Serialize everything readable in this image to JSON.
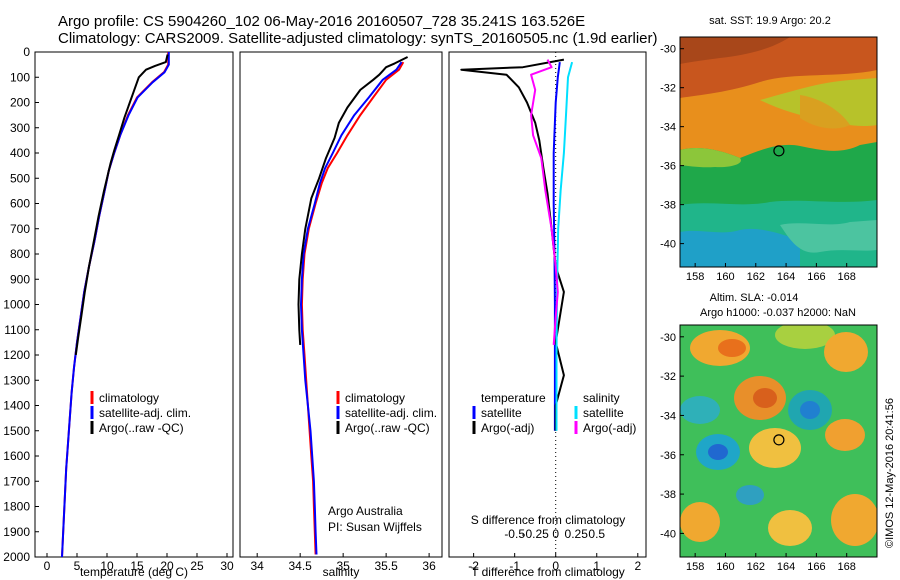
{
  "header": {
    "line1": "Argo profile: CS 5904260_102 06-May-2016 20160507_728 35.241S 163.526E",
    "line2": "Climatology: CARS2009. Satellite-adjusted climatology: synTS_20160505.nc (1.9d earlier)"
  },
  "credit": "©IMOS 12-May-2016 20:41:56",
  "colors": {
    "climatology": "#ff0000",
    "satellite": "#0000ff",
    "argo": "#000000",
    "salinity_satellite": "#00e0ff",
    "salinity_argo": "#ff00ff"
  },
  "chart_data": [
    {
      "id": "temperature",
      "type": "line",
      "xlabel": "temperature (deg C)",
      "ylabel": "",
      "xlim": [
        -2,
        31
      ],
      "ylim": [
        2000,
        0
      ],
      "xticks": [
        0,
        5,
        10,
        15,
        20,
        25,
        30
      ],
      "yticks": [
        0,
        100,
        200,
        300,
        400,
        500,
        600,
        700,
        800,
        900,
        1000,
        1100,
        1200,
        1300,
        1400,
        1500,
        1600,
        1700,
        1800,
        1900,
        2000
      ],
      "legend": [
        "climatology",
        "satellite-adj. clim.",
        "Argo(..raw -QC)"
      ],
      "series": [
        {
          "name": "climatology",
          "color": "#ff0000",
          "points": [
            [
              20.2,
              0
            ],
            [
              20.2,
              50
            ],
            [
              19.5,
              80
            ],
            [
              17.5,
              120
            ],
            [
              15,
              180
            ],
            [
              13.5,
              250
            ],
            [
              12.2,
              330
            ],
            [
              11.2,
              400
            ],
            [
              10.3,
              470
            ],
            [
              9.6,
              550
            ],
            [
              8.7,
              650
            ],
            [
              7.9,
              750
            ],
            [
              7,
              850
            ],
            [
              6.2,
              950
            ],
            [
              5.6,
              1050
            ],
            [
              5,
              1150
            ],
            [
              4.5,
              1250
            ],
            [
              4.1,
              1350
            ],
            [
              3.8,
              1450
            ],
            [
              3.5,
              1550
            ],
            [
              3.2,
              1650
            ],
            [
              3,
              1750
            ],
            [
              2.8,
              1850
            ],
            [
              2.6,
              1950
            ],
            [
              2.5,
              2000
            ]
          ]
        },
        {
          "name": "satellite-adj. clim.",
          "color": "#0000ff",
          "points": [
            [
              20.3,
              0
            ],
            [
              20.3,
              50
            ],
            [
              19.6,
              80
            ],
            [
              17.6,
              120
            ],
            [
              15.1,
              180
            ],
            [
              13.6,
              250
            ],
            [
              12.2,
              330
            ],
            [
              11.2,
              400
            ],
            [
              10.3,
              470
            ],
            [
              9.6,
              550
            ],
            [
              8.7,
              650
            ],
            [
              7.9,
              750
            ],
            [
              7,
              850
            ],
            [
              6.2,
              950
            ],
            [
              5.6,
              1050
            ],
            [
              5,
              1150
            ],
            [
              4.5,
              1250
            ],
            [
              4.1,
              1350
            ],
            [
              3.8,
              1450
            ],
            [
              3.5,
              1550
            ],
            [
              3.2,
              1650
            ],
            [
              3,
              1750
            ],
            [
              2.8,
              1850
            ],
            [
              2.6,
              1950
            ],
            [
              2.5,
              2000
            ]
          ]
        },
        {
          "name": "Argo(..raw -QC)",
          "color": "#000000",
          "points": [
            [
              20.1,
              10
            ],
            [
              19.8,
              40
            ],
            [
              18,
              55
            ],
            [
              16.5,
              70
            ],
            [
              15.3,
              100
            ],
            [
              14.4,
              160
            ],
            [
              13.8,
              200
            ],
            [
              12.9,
              260
            ],
            [
              12,
              330
            ],
            [
              11.2,
              390
            ],
            [
              10.6,
              440
            ],
            [
              10.1,
              490
            ],
            [
              9.5,
              550
            ],
            [
              8.6,
              650
            ],
            [
              7.8,
              750
            ],
            [
              7,
              850
            ],
            [
              6.3,
              950
            ],
            [
              5.7,
              1050
            ],
            [
              5.2,
              1130
            ],
            [
              4.8,
              1200
            ]
          ]
        }
      ]
    },
    {
      "id": "salinity",
      "type": "line",
      "xlabel": "salinity",
      "ylabel": "",
      "xlim": [
        33.8,
        36.15
      ],
      "ylim": [
        2000,
        0
      ],
      "xticks": [
        34,
        34.5,
        35,
        35.5,
        36
      ],
      "legend": [
        "climatology",
        "satellite-adj. clim.",
        "Argo(..raw -QC)"
      ],
      "annotations": [
        "Argo Australia",
        "PI: Susan Wijffels"
      ],
      "series": [
        {
          "name": "climatology",
          "color": "#ff0000",
          "points": [
            [
              35.7,
              40
            ],
            [
              35.65,
              70
            ],
            [
              35.5,
              110
            ],
            [
              35.35,
              180
            ],
            [
              35.2,
              250
            ],
            [
              35.05,
              330
            ],
            [
              34.93,
              400
            ],
            [
              34.82,
              460
            ],
            [
              34.75,
              520
            ],
            [
              34.68,
              600
            ],
            [
              34.6,
              700
            ],
            [
              34.55,
              800
            ],
            [
              34.53,
              900
            ],
            [
              34.52,
              1000
            ],
            [
              34.53,
              1100
            ],
            [
              34.55,
              1200
            ],
            [
              34.57,
              1300
            ],
            [
              34.59,
              1400
            ],
            [
              34.61,
              1500
            ],
            [
              34.63,
              1600
            ],
            [
              34.65,
              1700
            ],
            [
              34.66,
              1800
            ],
            [
              34.67,
              1900
            ],
            [
              34.68,
              1990
            ]
          ]
        },
        {
          "name": "satellite-adj. clim.",
          "color": "#0000ff",
          "points": [
            [
              35.68,
              40
            ],
            [
              35.62,
              70
            ],
            [
              35.46,
              110
            ],
            [
              35.3,
              180
            ],
            [
              35.13,
              250
            ],
            [
              34.98,
              330
            ],
            [
              34.88,
              400
            ],
            [
              34.79,
              460
            ],
            [
              34.73,
              520
            ],
            [
              34.67,
              600
            ],
            [
              34.59,
              700
            ],
            [
              34.54,
              800
            ],
            [
              34.52,
              900
            ],
            [
              34.51,
              1000
            ],
            [
              34.52,
              1100
            ],
            [
              34.54,
              1200
            ],
            [
              34.56,
              1300
            ],
            [
              34.59,
              1400
            ],
            [
              34.62,
              1500
            ],
            [
              34.64,
              1600
            ],
            [
              34.66,
              1700
            ],
            [
              34.67,
              1800
            ],
            [
              34.68,
              1900
            ],
            [
              34.69,
              1990
            ]
          ]
        },
        {
          "name": "Argo(..raw -QC)",
          "color": "#000000",
          "points": [
            [
              35.75,
              20
            ],
            [
              35.6,
              45
            ],
            [
              35.5,
              60
            ],
            [
              35.42,
              90
            ],
            [
              35.35,
              110
            ],
            [
              35.2,
              150
            ],
            [
              35.05,
              220
            ],
            [
              34.95,
              280
            ],
            [
              34.9,
              340
            ],
            [
              34.8,
              420
            ],
            [
              34.72,
              500
            ],
            [
              34.63,
              580
            ],
            [
              34.56,
              700
            ],
            [
              34.52,
              800
            ],
            [
              34.49,
              900
            ],
            [
              34.48,
              1000
            ],
            [
              34.49,
              1100
            ],
            [
              34.5,
              1160
            ]
          ]
        }
      ]
    },
    {
      "id": "difference",
      "type": "line",
      "xlabel": "T difference from climatology",
      "xlabel_top": "S difference from climatology",
      "ylabel": "",
      "xlim": [
        -2.6,
        2.2
      ],
      "ylim": [
        2000,
        0
      ],
      "xticks": [
        -2,
        -1,
        0,
        1,
        2
      ],
      "xticks_top": [
        "-0.5",
        "-0.25",
        "0",
        "0.25",
        "0.5"
      ],
      "legend_temperature": {
        "title": "temperature",
        "items": [
          "satellite",
          "Argo(-adj)"
        ]
      },
      "legend_salinity": {
        "title": "salinity",
        "items": [
          "satellite",
          "Argo(-adj)"
        ]
      },
      "series": [
        {
          "name": "temperature satellite",
          "color": "#0000ff",
          "points": [
            [
              0.1,
              40
            ],
            [
              0.05,
              100
            ],
            [
              0,
              200
            ],
            [
              -0.05,
              400
            ],
            [
              -0.05,
              600
            ],
            [
              -0.03,
              800
            ],
            [
              -0.02,
              1000
            ],
            [
              -0.02,
              1200
            ],
            [
              -0.02,
              1500
            ]
          ]
        },
        {
          "name": "temperature Argo(-adj)",
          "color": "#000000",
          "points": [
            [
              0.2,
              30
            ],
            [
              -0.8,
              60
            ],
            [
              -2.3,
              70
            ],
            [
              -1.2,
              90
            ],
            [
              -0.9,
              140
            ],
            [
              -0.7,
              200
            ],
            [
              -0.5,
              280
            ],
            [
              -0.4,
              350
            ],
            [
              -0.3,
              460
            ],
            [
              -0.2,
              560
            ],
            [
              -0.1,
              700
            ],
            [
              0,
              850
            ],
            [
              0.2,
              950
            ],
            [
              0.1,
              1050
            ],
            [
              0,
              1150
            ],
            [
              0.2,
              1280
            ],
            [
              0,
              1400
            ],
            [
              0,
              1500
            ]
          ]
        },
        {
          "name": "salinity satellite",
          "color": "#00e0ff",
          "points": [
            [
              0.4,
              40
            ],
            [
              0.3,
              100
            ],
            [
              0.25,
              250
            ],
            [
              0.2,
              400
            ],
            [
              0.12,
              550
            ],
            [
              0.06,
              700
            ],
            [
              0.04,
              850
            ],
            [
              0.03,
              1000
            ],
            [
              0.02,
              1200
            ],
            [
              0.02,
              1500
            ]
          ]
        },
        {
          "name": "salinity Argo(-adj)",
          "color": "#ff00ff",
          "points": [
            [
              -0.2,
              30
            ],
            [
              -0.1,
              60
            ],
            [
              -0.6,
              90
            ],
            [
              -0.5,
              150
            ],
            [
              -0.6,
              250
            ],
            [
              -0.55,
              330
            ],
            [
              -0.35,
              420
            ],
            [
              -0.25,
              550
            ],
            [
              -0.1,
              700
            ],
            [
              0,
              850
            ],
            [
              0.05,
              950
            ],
            [
              0,
              1050
            ],
            [
              -0.05,
              1160
            ]
          ]
        }
      ]
    },
    {
      "id": "sst_map",
      "type": "heatmap",
      "title": "sat. SST: 19.9 Argo: 20.2",
      "xlim": [
        157,
        170
      ],
      "ylim": [
        -41.2,
        -29.4
      ],
      "xticks": [
        158,
        160,
        162,
        164,
        166,
        168
      ],
      "yticks": [
        -30,
        -32,
        -34,
        -36,
        -38,
        -40
      ],
      "marker": {
        "lon": 163.526,
        "lat": -35.241
      }
    },
    {
      "id": "sla_map",
      "type": "heatmap",
      "title": "Altim. SLA: -0.014",
      "subtitle": "Argo h1000: -0.037 h2000: NaN",
      "xlim": [
        157,
        170
      ],
      "ylim": [
        -41.2,
        -29.4
      ],
      "xticks": [
        158,
        160,
        162,
        164,
        166,
        168
      ],
      "yticks": [
        -30,
        -32,
        -34,
        -36,
        -38,
        -40
      ],
      "marker": {
        "lon": 163.526,
        "lat": -35.241
      }
    }
  ]
}
